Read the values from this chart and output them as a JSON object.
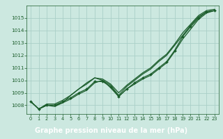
{
  "title": "Graphe pression niveau de la mer (hPa)",
  "background_color": "#cce8e0",
  "plot_bg_color": "#cce8e0",
  "title_bg_color": "#2d6e30",
  "title_text_color": "#ffffff",
  "grid_color": "#aacfc8",
  "line_color": "#1a5c2a",
  "xlim": [
    -0.5,
    23.5
  ],
  "ylim": [
    1007.3,
    1016.0
  ],
  "yticks": [
    1008,
    1009,
    1010,
    1011,
    1012,
    1013,
    1014,
    1015
  ],
  "xticks": [
    0,
    1,
    2,
    3,
    4,
    5,
    6,
    7,
    8,
    9,
    10,
    11,
    12,
    13,
    14,
    15,
    16,
    17,
    18,
    19,
    20,
    21,
    22,
    23
  ],
  "series_with_markers": [
    [
      1008.3,
      1007.7,
      1008.0,
      1008.0,
      1008.3,
      1008.6,
      1009.0,
      1009.3,
      1009.9,
      1009.9,
      1009.5,
      1008.7,
      1009.3,
      1009.8,
      1010.2,
      1010.5,
      1011.0,
      1011.5,
      1012.4,
      1013.5,
      1014.3,
      1015.0,
      1015.5,
      1015.6
    ]
  ],
  "series_no_markers": [
    [
      1008.3,
      1007.7,
      1008.0,
      1007.9,
      1008.2,
      1008.8,
      1009.3,
      1009.8,
      1010.2,
      1010.1,
      1009.7,
      1009.0,
      1009.6,
      1010.1,
      1010.6,
      1011.0,
      1011.6,
      1012.1,
      1012.9,
      1013.8,
      1014.5,
      1015.2,
      1015.6,
      1015.7
    ],
    [
      1008.3,
      1007.7,
      1008.1,
      1008.1,
      1008.4,
      1008.8,
      1009.3,
      1009.7,
      1010.2,
      1010.0,
      1009.6,
      1008.8,
      1009.5,
      1010.0,
      1010.5,
      1010.9,
      1011.5,
      1012.0,
      1012.8,
      1013.6,
      1014.4,
      1015.1,
      1015.5,
      1015.6
    ],
    [
      1008.3,
      1007.7,
      1008.0,
      1008.0,
      1008.2,
      1008.5,
      1008.9,
      1009.2,
      1009.8,
      1010.0,
      1009.4,
      1008.7,
      1009.3,
      1009.7,
      1010.1,
      1010.4,
      1010.9,
      1011.4,
      1012.3,
      1013.3,
      1014.1,
      1014.9,
      1015.4,
      1015.6
    ]
  ]
}
